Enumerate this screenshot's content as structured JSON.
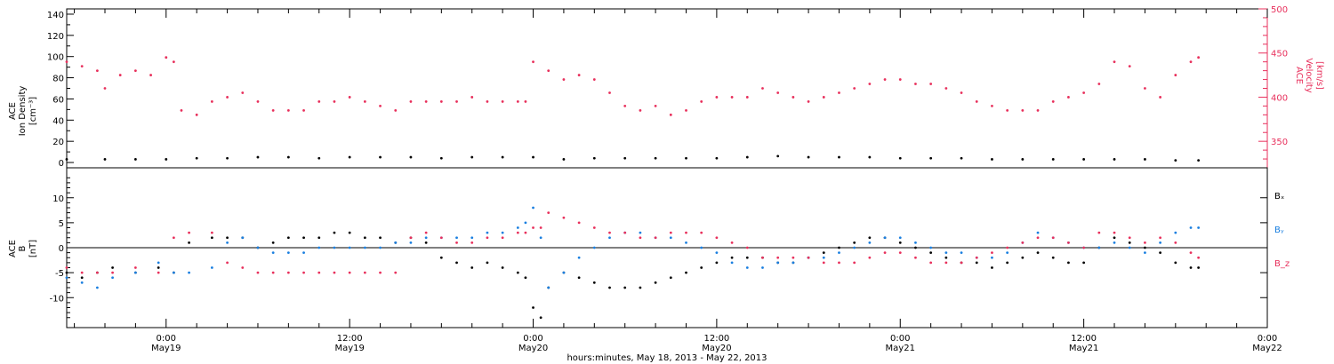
{
  "figure": {
    "x_caption": "hours:minutes, May 18, 2013 - May 22, 2013",
    "x_ticks": [
      {
        "time": "0:00",
        "day": "May19"
      },
      {
        "time": "12:00",
        "day": "May19"
      },
      {
        "time": "0:00",
        "day": "May20"
      },
      {
        "time": "12:00",
        "day": "May20"
      },
      {
        "time": "0:00",
        "day": "May21"
      },
      {
        "time": "12:00",
        "day": "May21"
      },
      {
        "time": "0:00",
        "day": "May22"
      }
    ]
  },
  "colors": {
    "black": "#000000",
    "red": "#e8305c",
    "blue": "#1a7fe0",
    "axis": "#000000"
  },
  "chart_data": [
    {
      "type": "scatter",
      "panel": "top",
      "x_unit": "hours since May 18 0:00",
      "xlim": [
        17.5,
        96
      ],
      "ylabel_left_lines": [
        "ACE",
        "Ion Density",
        "[cm⁻³]"
      ],
      "ylabel_right_lines": [
        "ACE",
        "Velocity",
        "[km/s]"
      ],
      "ylim_left": [
        -5,
        145
      ],
      "ylim_right": [
        320,
        500
      ],
      "yticks_left": [
        0,
        20,
        40,
        60,
        80,
        100,
        120,
        140
      ],
      "yticks_right": [
        350,
        400,
        450,
        500
      ],
      "series": [
        {
          "axis": "left",
          "color_key": "black",
          "x": [
            17.5,
            20,
            22,
            24,
            26,
            28,
            30,
            32,
            34,
            36,
            38,
            40,
            42,
            44,
            46,
            48,
            50,
            52,
            54,
            56,
            58,
            60,
            62,
            64,
            66,
            68,
            70,
            72,
            74,
            76,
            78,
            80,
            82,
            84,
            86,
            88,
            90,
            91.5
          ],
          "y": [
            3,
            3,
            3,
            3,
            4,
            4,
            5,
            5,
            4,
            5,
            5,
            5,
            4,
            5,
            5,
            5,
            3,
            4,
            4,
            4,
            4,
            4,
            5,
            6,
            5,
            5,
            5,
            4,
            4,
            4,
            3,
            3,
            3,
            3,
            3,
            3,
            2,
            2
          ]
        },
        {
          "axis": "right",
          "color_key": "red",
          "x": [
            17.5,
            18.5,
            19.5,
            20,
            21,
            22,
            23,
            24,
            24.5,
            25,
            26,
            27,
            28,
            29,
            30,
            31,
            32,
            33,
            34,
            35,
            36,
            37,
            38,
            39,
            40,
            41,
            42,
            43,
            44,
            45,
            46,
            47,
            47.5,
            48,
            49,
            50,
            51,
            52,
            53,
            54,
            55,
            56,
            57,
            58,
            59,
            60,
            61,
            62,
            63,
            64,
            65,
            66,
            67,
            68,
            69,
            70,
            71,
            72,
            73,
            74,
            75,
            76,
            77,
            78,
            79,
            80,
            81,
            82,
            83,
            84,
            85,
            86,
            87,
            88,
            89,
            90,
            91,
            91.5
          ],
          "y": [
            440,
            435,
            430,
            410,
            425,
            430,
            425,
            445,
            440,
            385,
            380,
            395,
            400,
            405,
            395,
            385,
            385,
            385,
            395,
            395,
            400,
            395,
            390,
            385,
            395,
            395,
            395,
            395,
            400,
            395,
            395,
            395,
            395,
            440,
            430,
            420,
            425,
            420,
            405,
            390,
            385,
            390,
            380,
            385,
            395,
            400,
            400,
            400,
            410,
            405,
            400,
            395,
            400,
            405,
            410,
            415,
            420,
            420,
            415,
            415,
            410,
            405,
            395,
            390,
            385,
            385,
            385,
            395,
            400,
            405,
            415,
            440,
            435,
            410,
            400,
            425,
            440,
            445
          ]
        }
      ]
    },
    {
      "type": "scatter",
      "panel": "bottom",
      "x_unit": "hours since May 18 0:00",
      "xlim": [
        17.5,
        96
      ],
      "ylabel_lines": [
        "ACE",
        "B",
        "[nT]"
      ],
      "ylim": [
        -16,
        16
      ],
      "yticks": [
        -10,
        -5,
        0,
        5,
        10
      ],
      "legend": [
        {
          "text": "Bₓ",
          "color_key": "black"
        },
        {
          "text": "Bᵧ",
          "color_key": "blue"
        },
        {
          "text": "B_z",
          "color_key": "red"
        }
      ],
      "series": [
        {
          "name": "Bₓ",
          "color_key": "black",
          "x": [
            17.5,
            18.5,
            19.5,
            20.5,
            22,
            23.5,
            24.5,
            25.5,
            27,
            28,
            29,
            30,
            31,
            32,
            33,
            34,
            35,
            36,
            37,
            38,
            39,
            40,
            41,
            42,
            43,
            44,
            45,
            46,
            47,
            47.5,
            48,
            48.5,
            49,
            50,
            51,
            52,
            53,
            54,
            55,
            56,
            57,
            58,
            59,
            60,
            61,
            62,
            63,
            64,
            65,
            66,
            67,
            68,
            69,
            70,
            71,
            72,
            73,
            74,
            75,
            76,
            77,
            78,
            79,
            80,
            81,
            82,
            83,
            84,
            85,
            86,
            87,
            88,
            89,
            90,
            91,
            91.5
          ],
          "y": [
            -5,
            -6,
            -5,
            -4,
            -5,
            -4,
            -5,
            1,
            2,
            2,
            2,
            0,
            1,
            2,
            2,
            2,
            3,
            3,
            2,
            2,
            1,
            2,
            1,
            -2,
            -3,
            -4,
            -3,
            -4,
            -5,
            -6,
            -12,
            -14,
            -8,
            -5,
            -6,
            -7,
            -8,
            -8,
            -8,
            -7,
            -6,
            -5,
            -4,
            -3,
            -2,
            -2,
            -2,
            -3,
            -3,
            -2,
            -1,
            0,
            1,
            2,
            2,
            1,
            0,
            -1,
            -2,
            -3,
            -3,
            -4,
            -3,
            -2,
            -1,
            -2,
            -3,
            -3,
            0,
            2,
            1,
            0,
            -1,
            -3,
            -4,
            -4
          ]
        },
        {
          "name": "Bᵧ",
          "color_key": "blue",
          "x": [
            17.5,
            18.5,
            19.5,
            20.5,
            22,
            23.5,
            24.5,
            25.5,
            27,
            28,
            29,
            30,
            31,
            32,
            33,
            34,
            35,
            36,
            37,
            38,
            39,
            40,
            41,
            42,
            43,
            44,
            45,
            46,
            47,
            47.5,
            48,
            48.5,
            49,
            50,
            51,
            52,
            53,
            54,
            55,
            56,
            57,
            58,
            59,
            60,
            61,
            62,
            63,
            64,
            65,
            66,
            67,
            68,
            69,
            70,
            71,
            72,
            73,
            74,
            75,
            76,
            77,
            78,
            79,
            80,
            81,
            82,
            83,
            84,
            85,
            86,
            87,
            88,
            89,
            90,
            91,
            91.5
          ],
          "y": [
            -6,
            -7,
            -8,
            -6,
            -5,
            -3,
            -5,
            -5,
            -4,
            1,
            2,
            0,
            -1,
            -1,
            -1,
            0,
            0,
            0,
            0,
            0,
            1,
            1,
            2,
            2,
            2,
            2,
            3,
            3,
            4,
            5,
            8,
            2,
            -8,
            -5,
            -2,
            0,
            2,
            3,
            3,
            2,
            2,
            1,
            0,
            -1,
            -3,
            -4,
            -4,
            -3,
            -3,
            -2,
            -2,
            -1,
            0,
            1,
            2,
            2,
            1,
            0,
            -1,
            -1,
            -2,
            -2,
            -1,
            1,
            3,
            2,
            1,
            0,
            0,
            1,
            0,
            -1,
            1,
            3,
            4,
            4
          ]
        },
        {
          "name": "B_z",
          "color_key": "red",
          "x": [
            17.5,
            18.5,
            19.5,
            20.5,
            22,
            23.5,
            24.5,
            25.5,
            27,
            28,
            29,
            30,
            31,
            32,
            33,
            34,
            35,
            36,
            37,
            38,
            39,
            40,
            41,
            42,
            43,
            44,
            45,
            46,
            47,
            47.5,
            48,
            48.5,
            49,
            50,
            51,
            52,
            53,
            54,
            55,
            56,
            57,
            58,
            59,
            60,
            61,
            62,
            63,
            64,
            65,
            66,
            67,
            68,
            69,
            70,
            71,
            72,
            73,
            74,
            75,
            76,
            77,
            78,
            79,
            80,
            81,
            82,
            83,
            84,
            85,
            86,
            87,
            88,
            89,
            90,
            91,
            91.5
          ],
          "y": [
            -4,
            -5,
            -5,
            -5,
            -4,
            -5,
            2,
            3,
            3,
            -3,
            -4,
            -5,
            -5,
            -5,
            -5,
            -5,
            -5,
            -5,
            -5,
            -5,
            -5,
            2,
            3,
            2,
            1,
            1,
            2,
            2,
            3,
            3,
            4,
            4,
            7,
            6,
            5,
            4,
            3,
            3,
            2,
            2,
            3,
            3,
            3,
            2,
            1,
            0,
            -2,
            -2,
            -2,
            -2,
            -3,
            -3,
            -3,
            -2,
            -1,
            -1,
            -2,
            -3,
            -3,
            -3,
            -2,
            -1,
            0,
            1,
            2,
            2,
            1,
            0,
            3,
            3,
            2,
            1,
            2,
            1,
            -1,
            -2
          ]
        }
      ]
    }
  ]
}
